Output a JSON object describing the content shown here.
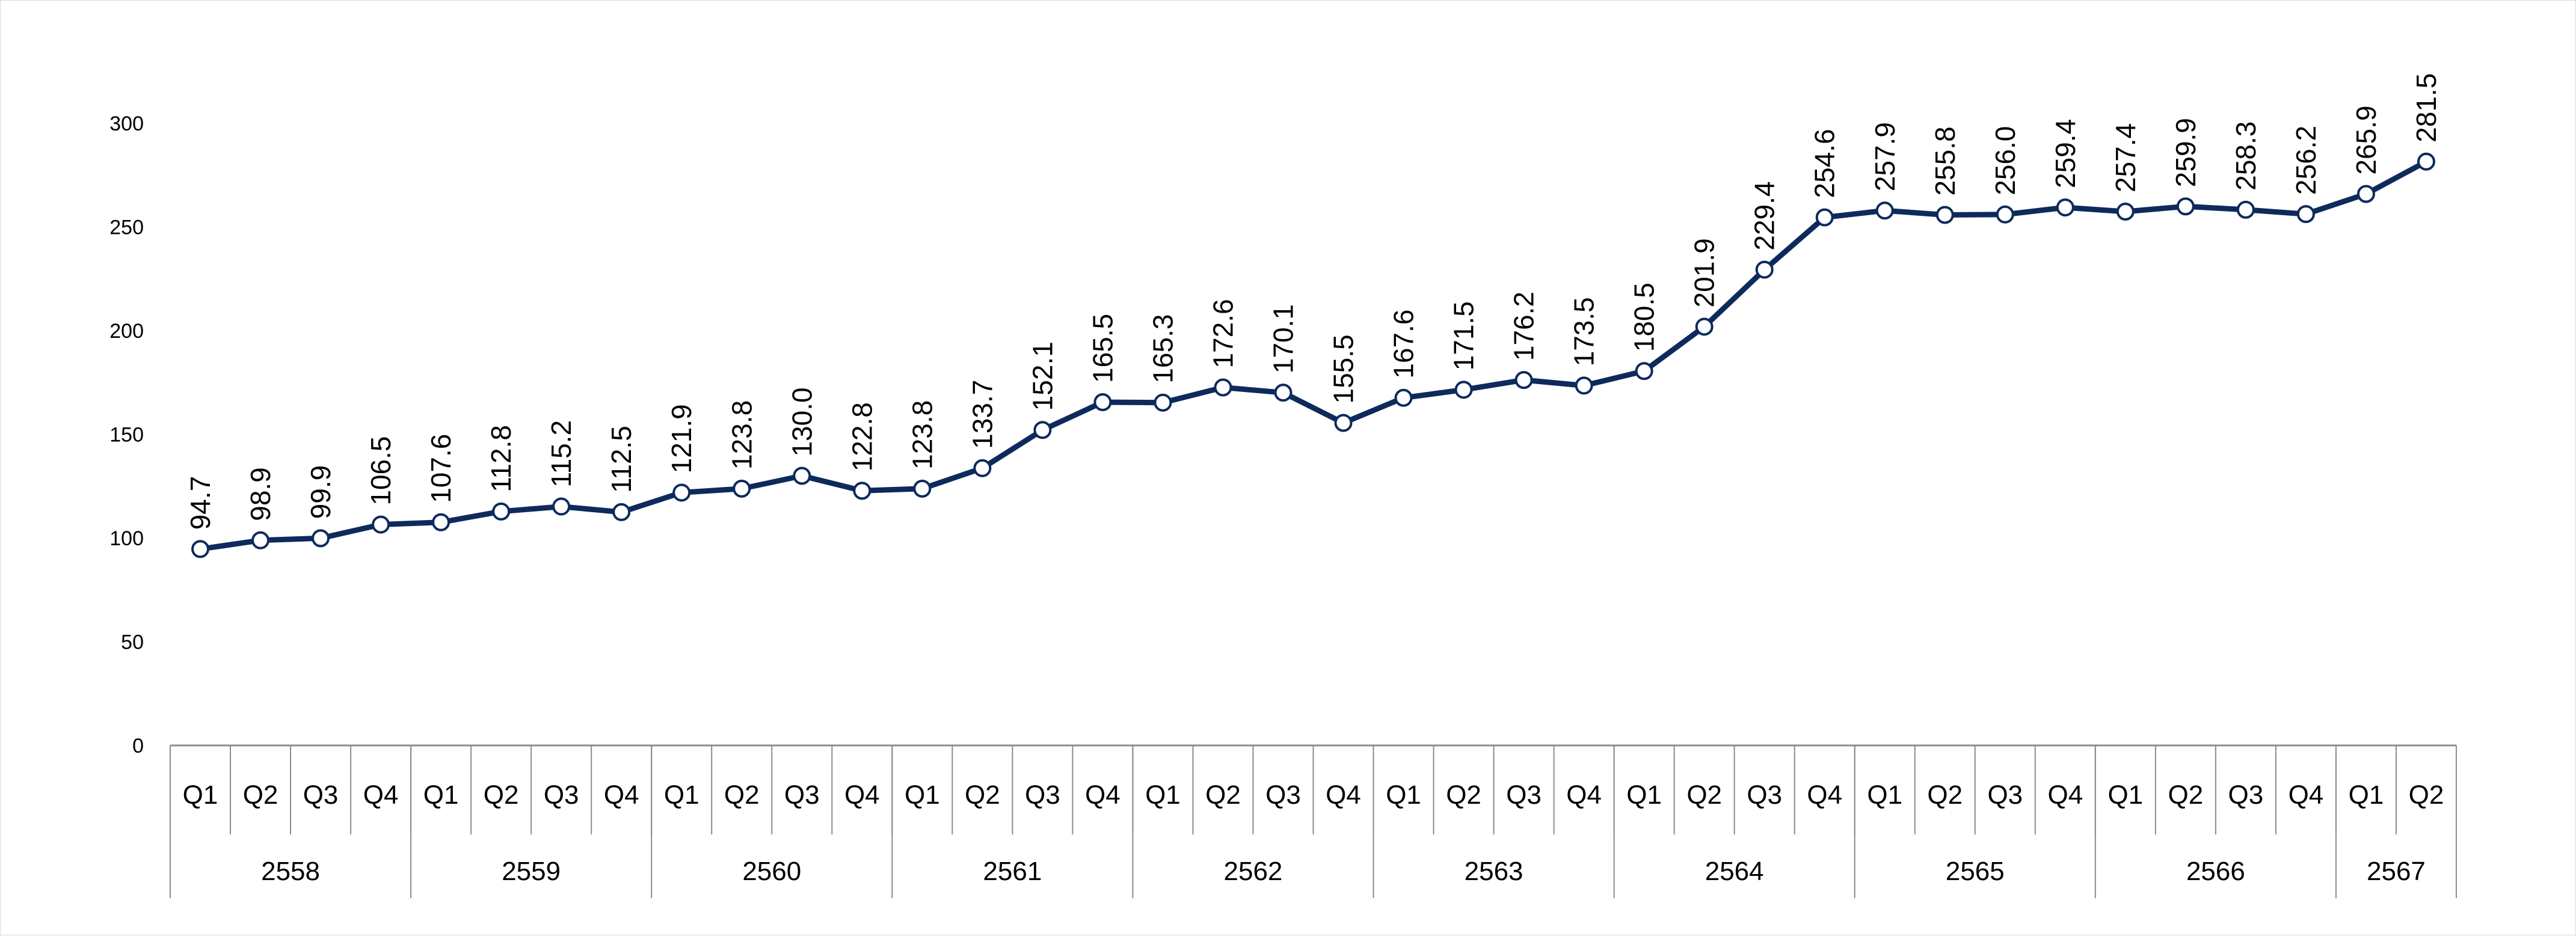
{
  "chart_data": {
    "type": "line",
    "title": "",
    "xlabel": "",
    "ylabel": "",
    "ylim": [
      0,
      300
    ],
    "yticks": [
      0,
      50,
      100,
      150,
      200,
      250,
      300
    ],
    "grid": false,
    "legend": "none",
    "colors": {
      "line": "#0d2a5c",
      "marker_fill": "#ffffff",
      "axis": "#8c8c8c"
    },
    "years": [
      {
        "label": "2558",
        "quarters": [
          "Q1",
          "Q2",
          "Q3",
          "Q4"
        ]
      },
      {
        "label": "2559",
        "quarters": [
          "Q1",
          "Q2",
          "Q3",
          "Q4"
        ]
      },
      {
        "label": "2560",
        "quarters": [
          "Q1",
          "Q2",
          "Q3",
          "Q4"
        ]
      },
      {
        "label": "2561",
        "quarters": [
          "Q1",
          "Q2",
          "Q3",
          "Q4"
        ]
      },
      {
        "label": "2562",
        "quarters": [
          "Q1",
          "Q2",
          "Q3",
          "Q4"
        ]
      },
      {
        "label": "2563",
        "quarters": [
          "Q1",
          "Q2",
          "Q3",
          "Q4"
        ]
      },
      {
        "label": "2564",
        "quarters": [
          "Q1",
          "Q2",
          "Q3",
          "Q4"
        ]
      },
      {
        "label": "2565",
        "quarters": [
          "Q1",
          "Q2",
          "Q3",
          "Q4"
        ]
      },
      {
        "label": "2566",
        "quarters": [
          "Q1",
          "Q2",
          "Q3",
          "Q4"
        ]
      },
      {
        "label": "2567",
        "quarters": [
          "Q1",
          "Q2"
        ]
      }
    ],
    "values": [
      94.7,
      98.9,
      99.9,
      106.5,
      107.6,
      112.8,
      115.2,
      112.5,
      121.9,
      123.8,
      130.0,
      122.8,
      123.8,
      133.7,
      152.1,
      165.5,
      165.3,
      172.6,
      170.1,
      155.5,
      167.6,
      171.5,
      176.2,
      173.5,
      180.5,
      201.9,
      229.4,
      254.6,
      257.9,
      255.8,
      256.0,
      259.4,
      257.4,
      259.9,
      258.3,
      256.2,
      265.9,
      281.5
    ],
    "data_labels": [
      "94.7",
      "98.9",
      "99.9",
      "106.5",
      "107.6",
      "112.8",
      "115.2",
      "112.5",
      "121.9",
      "123.8",
      "130.0",
      "122.8",
      "123.8",
      "133.7",
      "152.1",
      "165.5",
      "165.3",
      "172.6",
      "170.1",
      "155.5",
      "167.6",
      "171.5",
      "176.2",
      "173.5",
      "180.5",
      "201.9",
      "229.4",
      "254.6",
      "257.9",
      "255.8",
      "256.0",
      "259.4",
      "257.4",
      "259.9",
      "258.3",
      "256.2",
      "265.9",
      "281.5"
    ]
  }
}
